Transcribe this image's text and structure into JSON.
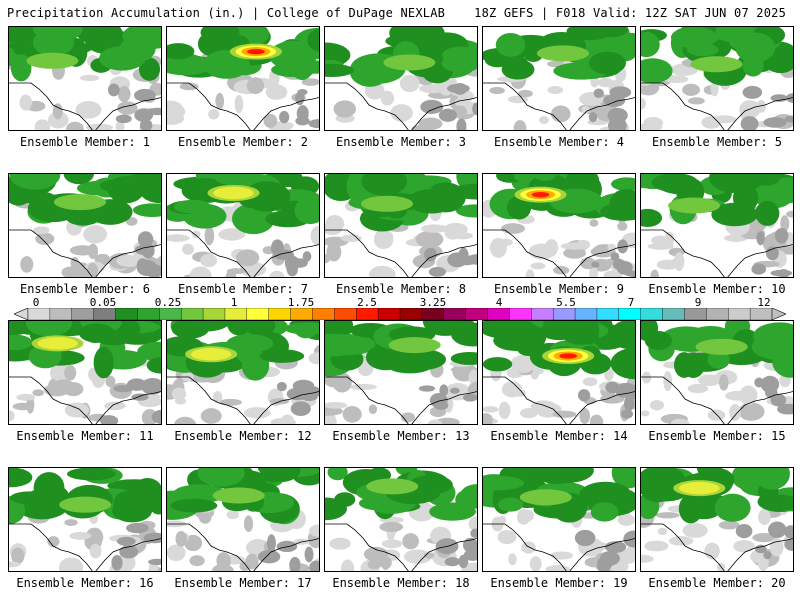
{
  "header": {
    "title": "Precipitation Accumulation (in.) | College of DuPage NEXLAB",
    "run_info": "18Z GEFS | F018 Valid: 12Z SAT JUN 07 2025"
  },
  "colors": {
    "precip_scale": [
      "#d9d9d9",
      "#bdbdbd",
      "#9e9e9e",
      "#7f7f7f",
      "#1f8f1f",
      "#2ea62e",
      "#49b849",
      "#73c73f",
      "#a8d63a",
      "#e6ee3a",
      "#ffff3a",
      "#ffd500",
      "#ffaa00",
      "#ff7f00",
      "#ff4c00",
      "#ff1a00",
      "#cc0000",
      "#990000",
      "#7a0020",
      "#99005c",
      "#c0007f",
      "#e000c0",
      "#ff33ff",
      "#c77dff",
      "#9999ff",
      "#66b3ff",
      "#33ddff",
      "#00ffff",
      "#33dddd",
      "#66bbbb",
      "#999999",
      "#b3b3b3",
      "#cccccc",
      "#bfbfbf"
    ]
  },
  "colorbar": {
    "tick_labels": [
      "0",
      "0.05",
      "0.25",
      "1",
      "1.75",
      "2.5",
      "3.25",
      "4",
      "5.5",
      "7",
      "9",
      "12"
    ]
  },
  "members": [
    {
      "label": "Ensemble Member: 1",
      "max_intensity": "low"
    },
    {
      "label": "Ensemble Member: 2",
      "max_intensity": "high"
    },
    {
      "label": "Ensemble Member: 3",
      "max_intensity": "low"
    },
    {
      "label": "Ensemble Member: 4",
      "max_intensity": "low"
    },
    {
      "label": "Ensemble Member: 5",
      "max_intensity": "low"
    },
    {
      "label": "Ensemble Member: 6",
      "max_intensity": "low"
    },
    {
      "label": "Ensemble Member: 7",
      "max_intensity": "moderate"
    },
    {
      "label": "Ensemble Member: 8",
      "max_intensity": "low"
    },
    {
      "label": "Ensemble Member: 9",
      "max_intensity": "high"
    },
    {
      "label": "Ensemble Member: 10",
      "max_intensity": "low"
    },
    {
      "label": "Ensemble Member: 11",
      "max_intensity": "moderate"
    },
    {
      "label": "Ensemble Member: 12",
      "max_intensity": "moderate"
    },
    {
      "label": "Ensemble Member: 13",
      "max_intensity": "low"
    },
    {
      "label": "Ensemble Member: 14",
      "max_intensity": "high"
    },
    {
      "label": "Ensemble Member: 15",
      "max_intensity": "low"
    },
    {
      "label": "Ensemble Member: 16",
      "max_intensity": "low"
    },
    {
      "label": "Ensemble Member: 17",
      "max_intensity": "low"
    },
    {
      "label": "Ensemble Member: 18",
      "max_intensity": "low"
    },
    {
      "label": "Ensemble Member: 19",
      "max_intensity": "low"
    },
    {
      "label": "Ensemble Member: 20",
      "max_intensity": "moderate"
    }
  ]
}
